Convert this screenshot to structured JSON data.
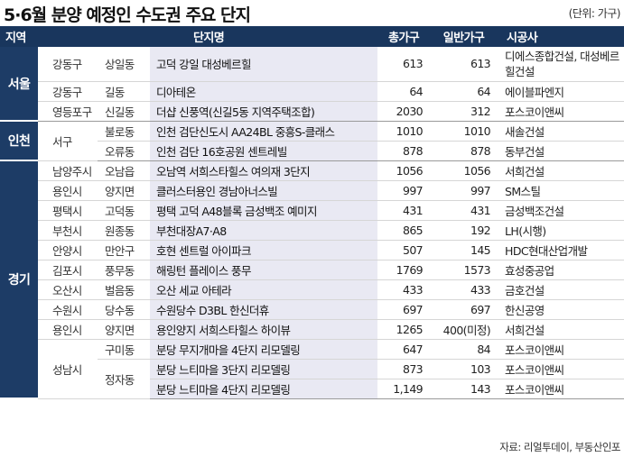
{
  "title": "5·6월 분양 예정인 수도권 주요 단지",
  "unit": "(단위: 가구)",
  "source": "자료: 리얼투데이, 부동산인포",
  "headers": {
    "region": "지역",
    "complex": "단지명",
    "total": "총가구",
    "general": "일반가구",
    "company": "시공사"
  },
  "regions": {
    "seoul": "서울",
    "incheon": "인천",
    "gyeonggi": "경기"
  },
  "rows": [
    {
      "city": "강동구",
      "dong": "상일동",
      "complex": "고덕 강일 대성베르힐",
      "total": "613",
      "general": "613",
      "company": "디에스종합건설, 대성베르힐건설"
    },
    {
      "city": "강동구",
      "dong": "길동",
      "complex": "디아테온",
      "total": "64",
      "general": "64",
      "company": "에이블파엔지"
    },
    {
      "city": "영등포구",
      "dong": "신길동",
      "complex": "더샵 신풍역(신길5동 지역주택조합)",
      "total": "2030",
      "general": "312",
      "company": "포스코이앤씨"
    },
    {
      "city": "서구",
      "dong": "불로동",
      "complex": "인천 검단신도시 AA24BL 중흥S-클래스",
      "total": "1010",
      "general": "1010",
      "company": "새솔건설"
    },
    {
      "city": "",
      "dong": "오류동",
      "complex": "인천 검단 16호공원 센트레빌",
      "total": "878",
      "general": "878",
      "company": "동부건설"
    },
    {
      "city": "남양주시",
      "dong": "오남읍",
      "complex": "오남역 서희스타힐스 여의재 3단지",
      "total": "1056",
      "general": "1056",
      "company": "서희건설"
    },
    {
      "city": "용인시",
      "dong": "양지면",
      "complex": "클러스터용인 경남아너스빌",
      "total": "997",
      "general": "997",
      "company": "SM스틸"
    },
    {
      "city": "평택시",
      "dong": "고덕동",
      "complex": "평택 고덕 A48블록 금성백조 예미지",
      "total": "431",
      "general": "431",
      "company": "금성백조건설"
    },
    {
      "city": "부천시",
      "dong": "원종동",
      "complex": "부천대장A7·A8",
      "total": "865",
      "general": "192",
      "company": "LH(시행)"
    },
    {
      "city": "안양시",
      "dong": "만안구",
      "complex": "호현 센트럴 아이파크",
      "total": "507",
      "general": "145",
      "company": "HDC현대산업개발"
    },
    {
      "city": "김포시",
      "dong": "풍무동",
      "complex": "해링턴 플레이스 풍무",
      "total": "1769",
      "general": "1573",
      "company": "효성중공업"
    },
    {
      "city": "오산시",
      "dong": "벌음동",
      "complex": "오산 세교 아테라",
      "total": "433",
      "general": "433",
      "company": "금호건설"
    },
    {
      "city": "수원시",
      "dong": "당수동",
      "complex": "수원당수 D3BL 한신더휴",
      "total": "697",
      "general": "697",
      "company": "한신공영"
    },
    {
      "city": "용인시",
      "dong": "양지면",
      "complex": "용인양지 서희스타힐스 하이뷰",
      "total": "1265",
      "general": "400(미정)",
      "company": "서희건설"
    },
    {
      "city": "성남시",
      "dong": "구미동",
      "complex": "분당 무지개마을 4단지 리모델링",
      "total": "647",
      "general": "84",
      "company": "포스코이앤씨"
    },
    {
      "city": "",
      "dong": "정자동",
      "complex": "분당 느티마을 3단지 리모델링",
      "total": "873",
      "general": "103",
      "company": "포스코이앤씨"
    },
    {
      "city": "",
      "dong": "",
      "complex": "분당 느티마을 4단지 리모델링",
      "total": "1,149",
      "general": "143",
      "company": "포스코이앤씨"
    }
  ]
}
